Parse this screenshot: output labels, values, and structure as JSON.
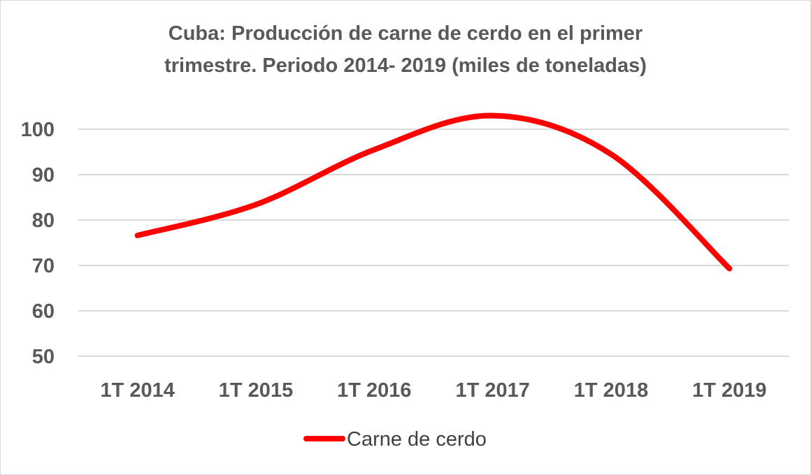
{
  "chart_data": {
    "type": "line",
    "title": "Cuba: Producción de carne de cerdo en el primer trimestre. Periodo 2014- 2019 (miles de toneladas)",
    "title_lines": [
      "Cuba: Producción de carne de cerdo en el primer",
      "trimestre. Periodo 2014- 2019 (miles de toneladas)"
    ],
    "categories": [
      "1T 2014",
      "1T 2015",
      "1T 2016",
      "1T 2017",
      "1T 2018",
      "1T 2019"
    ],
    "series": [
      {
        "name": "Carne de cerdo",
        "color": "#ff0000",
        "values": [
          76.6,
          83.4,
          95.5,
          103.0,
          94.5,
          69.3
        ]
      }
    ],
    "yticks": [
      50,
      60,
      70,
      80,
      90,
      100
    ],
    "ylim": [
      50,
      105
    ],
    "smooth": true,
    "grid": true,
    "legend_position": "bottom",
    "gridline_color": "#d9d9d9",
    "text_color": "#595959"
  }
}
